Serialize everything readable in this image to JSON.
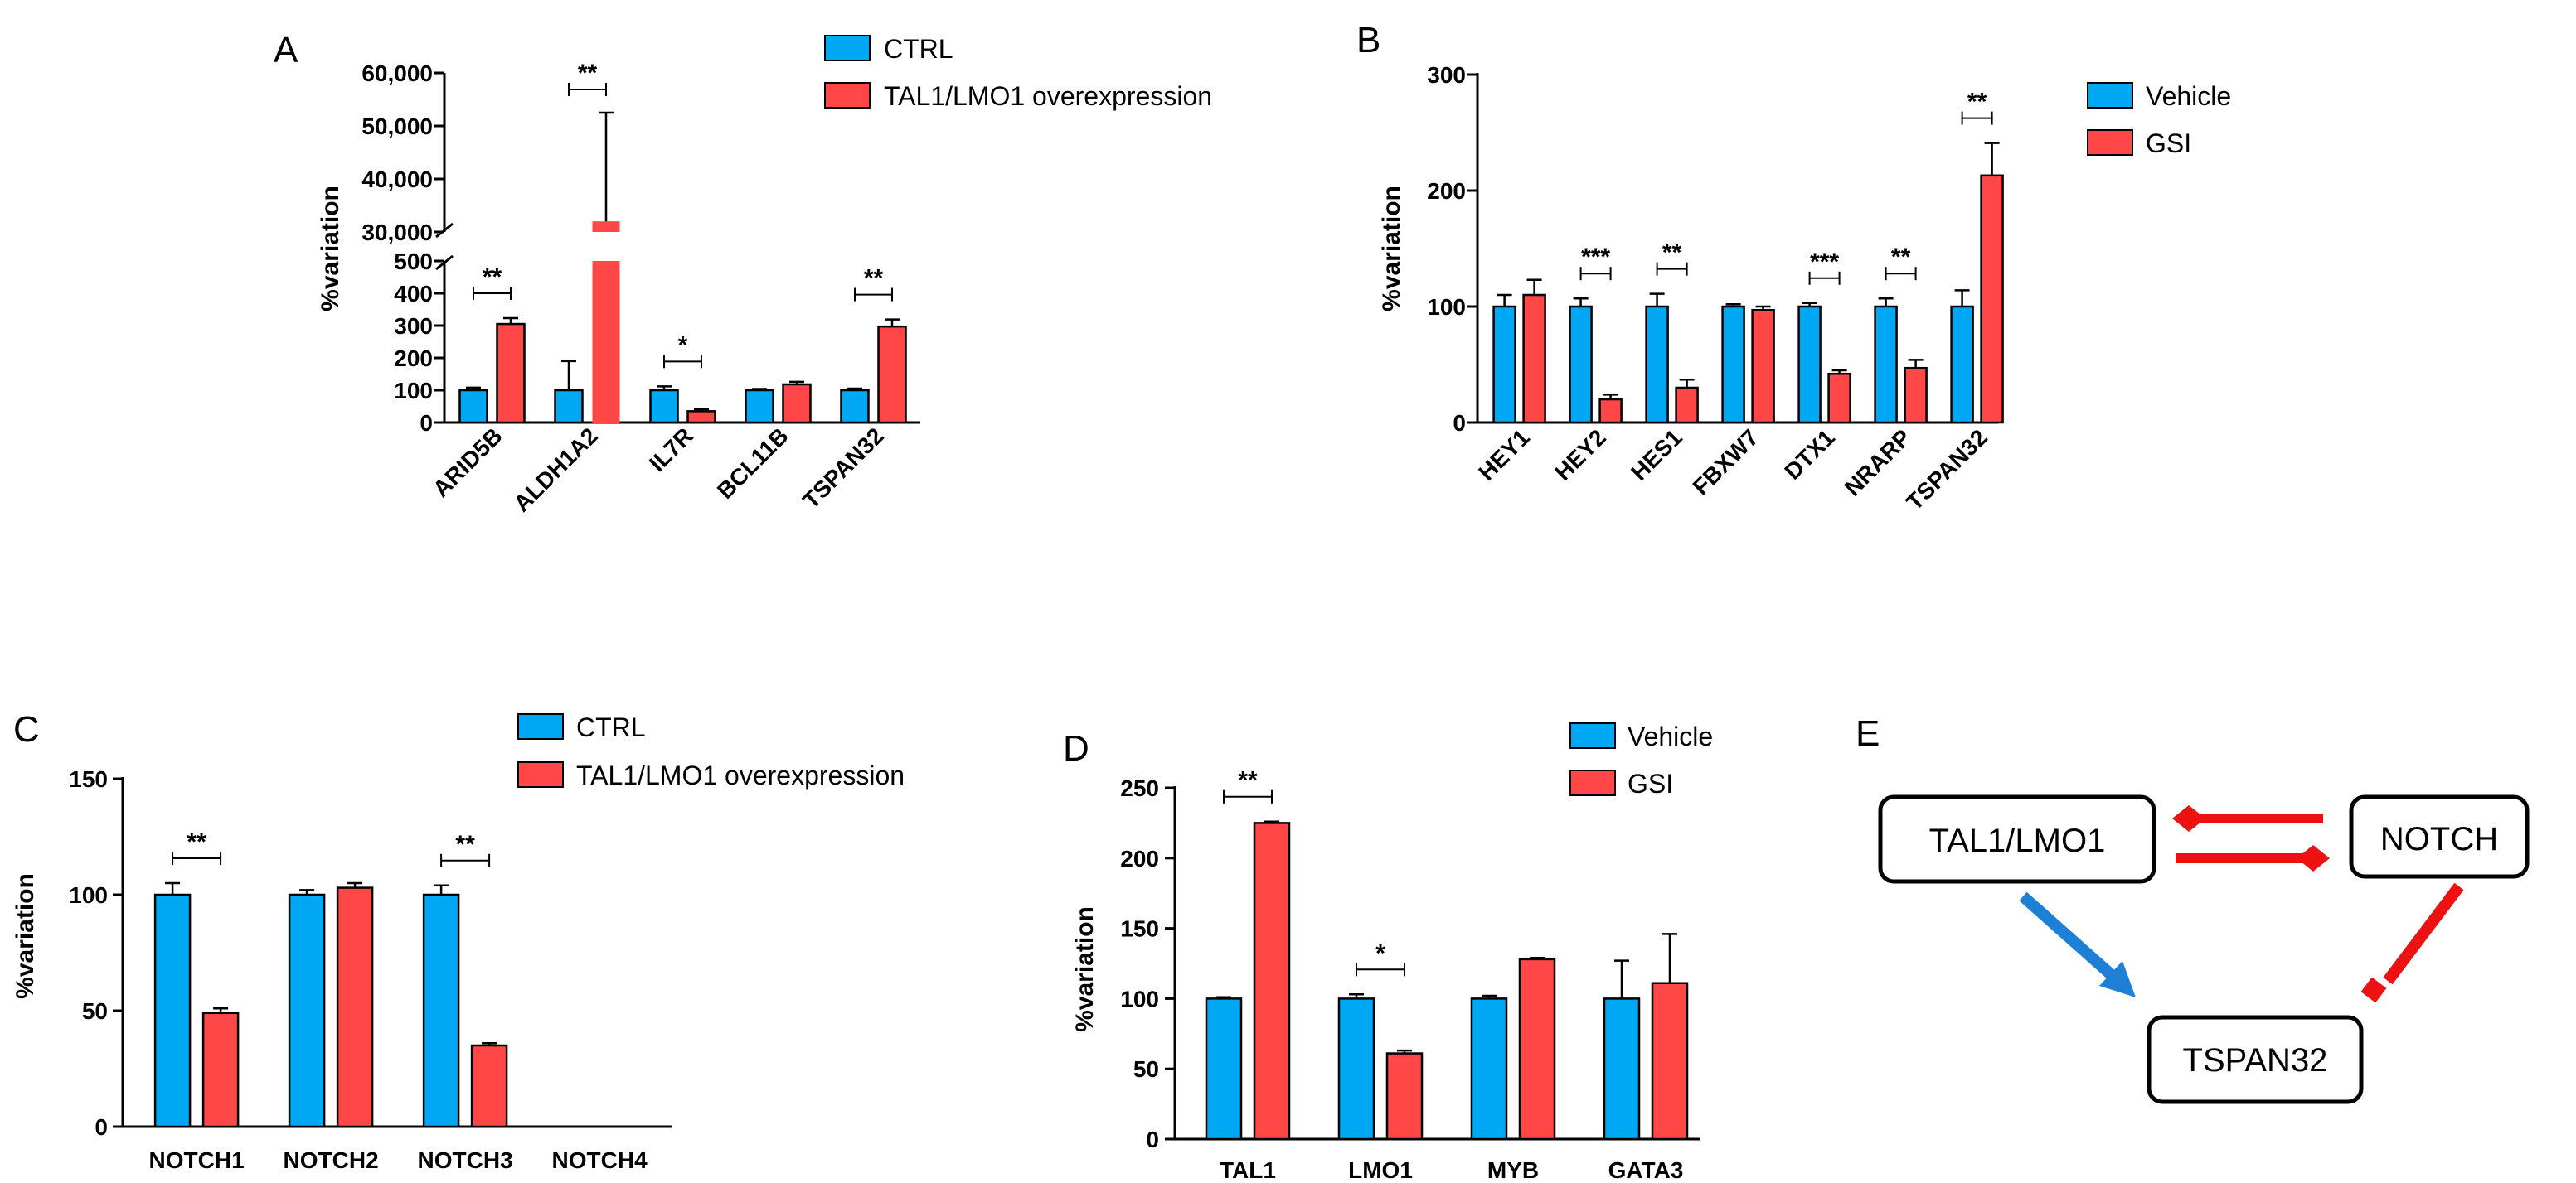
{
  "colors": {
    "blue": "#00a8f3",
    "red": "#ff4747",
    "arrow_red": "#ee1111",
    "arrow_blue": "#1e7fd6"
  },
  "chart_data": [
    {
      "id": "A",
      "panel": "A",
      "type": "bar",
      "title": "",
      "ylabel": "%variation",
      "categories": [
        "ARID5B",
        "ALDH1A2",
        "IL7R",
        "BCL11B",
        "TSPAN32"
      ],
      "series": [
        {
          "name": "CTRL",
          "color": "blue",
          "values": [
            100,
            100,
            100,
            100,
            100
          ],
          "errors": [
            8,
            90,
            12,
            4,
            5
          ]
        },
        {
          "name": "TAL1/LMO1 overexpression",
          "color": "red",
          "values": [
            305,
            32000,
            35,
            118,
            297
          ],
          "errors": [
            18,
            20500,
            6,
            8,
            22
          ]
        }
      ],
      "y_axis": {
        "broken": true,
        "lower": {
          "range": [
            0,
            500
          ],
          "ticks": [
            0,
            100,
            200,
            300,
            400,
            500
          ],
          "tick_labels": [
            "0",
            "100",
            "200",
            "300",
            "400",
            "500"
          ]
        },
        "upper": {
          "range": [
            30000,
            60000
          ],
          "ticks": [
            30000,
            40000,
            50000,
            60000
          ],
          "tick_labels": [
            "30,000",
            "40,000",
            "50,000",
            "60,000"
          ]
        }
      },
      "significance": [
        {
          "category": 0,
          "label": "**"
        },
        {
          "category": 1,
          "label": "**"
        },
        {
          "category": 2,
          "label": "*"
        },
        {
          "category": 4,
          "label": "**"
        }
      ],
      "legend_position": "top-right",
      "category_labels_rotated": true
    },
    {
      "id": "B",
      "panel": "B",
      "type": "bar",
      "title": "",
      "ylabel": "%variation",
      "categories": [
        "HEY1",
        "HEY2",
        "HES1",
        "FBXW7",
        "DTX1",
        "NRARP",
        "TSPAN32"
      ],
      "series": [
        {
          "name": "Vehicle",
          "color": "blue",
          "values": [
            100,
            100,
            100,
            100,
            100,
            100,
            100
          ],
          "errors": [
            10,
            7,
            11,
            2,
            3,
            7,
            14
          ]
        },
        {
          "name": "GSI",
          "color": "red",
          "values": [
            110,
            20,
            30,
            97,
            42,
            47,
            213
          ],
          "errors": [
            13,
            4,
            7,
            3,
            3,
            7,
            28
          ]
        }
      ],
      "ylim": [
        0,
        300
      ],
      "yticks": [
        0,
        100,
        200,
        300
      ],
      "ytick_labels": [
        "0",
        "100",
        "200",
        "300"
      ],
      "significance": [
        {
          "category": 1,
          "label": "***"
        },
        {
          "category": 2,
          "label": "**"
        },
        {
          "category": 4,
          "label": "***"
        },
        {
          "category": 5,
          "label": "**"
        },
        {
          "category": 6,
          "label": "**"
        }
      ],
      "legend_position": "right",
      "category_labels_rotated": true
    },
    {
      "id": "C",
      "panel": "C",
      "type": "bar",
      "title": "",
      "ylabel": "%variation",
      "categories": [
        "NOTCH1",
        "NOTCH2",
        "NOTCH3",
        "NOTCH4"
      ],
      "series": [
        {
          "name": "CTRL",
          "color": "blue",
          "values": [
            100,
            100,
            100,
            0
          ],
          "errors": [
            5,
            2,
            4,
            0
          ]
        },
        {
          "name": "TAL1/LMO1 overexpression",
          "color": "red",
          "values": [
            49,
            103,
            35,
            0
          ],
          "errors": [
            2,
            2,
            1,
            0
          ]
        }
      ],
      "ylim": [
        0,
        150
      ],
      "yticks": [
        0,
        50,
        100,
        150
      ],
      "ytick_labels": [
        "0",
        "50",
        "100",
        "150"
      ],
      "significance": [
        {
          "category": 0,
          "label": "**"
        },
        {
          "category": 2,
          "label": "**"
        }
      ],
      "legend_position": "top-right",
      "category_labels_rotated": false
    },
    {
      "id": "D",
      "panel": "D",
      "type": "bar",
      "title": "",
      "ylabel": "%variation",
      "categories": [
        "TAL1",
        "LMO1",
        "MYB",
        "GATA3"
      ],
      "series": [
        {
          "name": "Vehicle",
          "color": "blue",
          "values": [
            100,
            100,
            100,
            100
          ],
          "errors": [
            1,
            3,
            2,
            27
          ]
        },
        {
          "name": "GSI",
          "color": "red",
          "values": [
            225,
            61,
            128,
            111
          ],
          "errors": [
            1,
            2,
            1,
            35
          ]
        }
      ],
      "ylim": [
        0,
        250
      ],
      "yticks": [
        0,
        50,
        100,
        150,
        200,
        250
      ],
      "ytick_labels": [
        "0",
        "50",
        "100",
        "150",
        "200",
        "250"
      ],
      "significance": [
        {
          "category": 0,
          "label": "**"
        },
        {
          "category": 1,
          "label": "*"
        }
      ],
      "legend_position": "top-right",
      "category_labels_rotated": false
    }
  ],
  "diagram": {
    "panel": "E",
    "nodes": {
      "tal1": "TAL1/LMO1",
      "notch": "NOTCH",
      "tspan": "TSPAN32"
    }
  }
}
